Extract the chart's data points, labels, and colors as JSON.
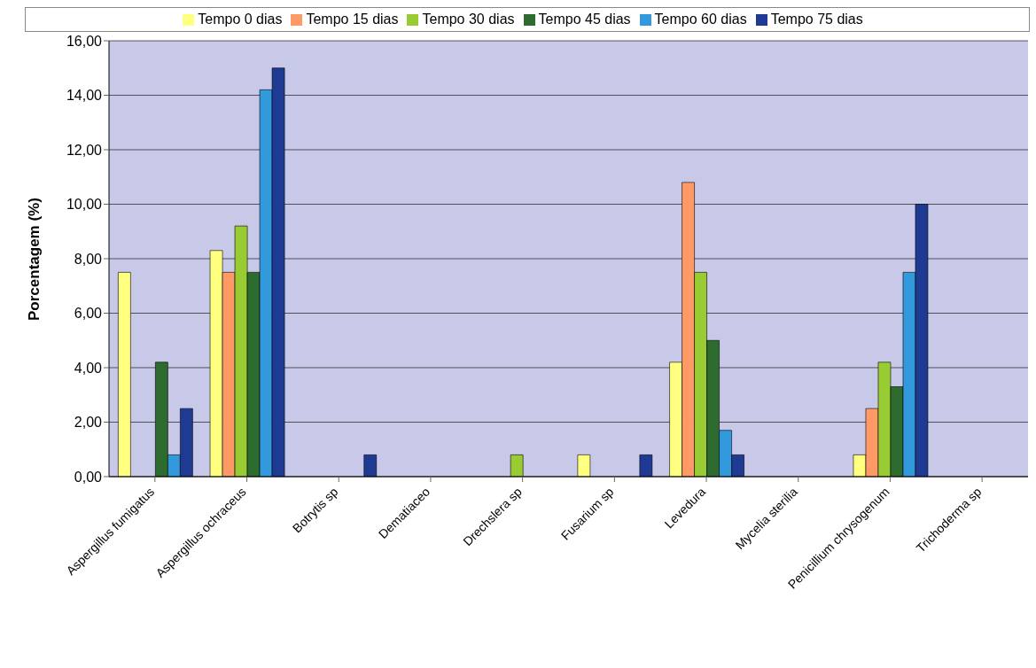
{
  "chart_data": {
    "type": "bar",
    "ylabel": "Porcentagem (%)",
    "categories": [
      "Aspergillus fumigatus",
      "Aspergillus ochraceus",
      "Botrytis sp",
      "Dematiaceo",
      "Drechslera sp",
      "Fusarium sp",
      "Levedura",
      "Mycelia sterilia",
      "Penicillium chrysogenum",
      "Trichoderma sp"
    ],
    "series": [
      {
        "name": "Tempo 0 dias",
        "color": "#ffff80",
        "values": [
          7.5,
          8.3,
          0,
          0,
          0,
          0.8,
          4.2,
          0,
          0.8,
          0
        ]
      },
      {
        "name": "Tempo 15 dias",
        "color": "#ff9966",
        "values": [
          0,
          7.5,
          0,
          0,
          0,
          0,
          10.8,
          0,
          2.5,
          0
        ]
      },
      {
        "name": "Tempo 30 dias",
        "color": "#99cc33",
        "values": [
          0,
          9.2,
          0,
          0,
          0.8,
          0,
          7.5,
          0,
          4.2,
          0
        ]
      },
      {
        "name": "Tempo 45 dias",
        "color": "#2e6b2e",
        "values": [
          4.2,
          7.5,
          0,
          0,
          0,
          0,
          5,
          0,
          3.3,
          0
        ]
      },
      {
        "name": "Tempo 60 dias",
        "color": "#3399dd",
        "values": [
          0.8,
          14.2,
          0,
          0,
          0,
          0,
          1.7,
          0,
          7.5,
          0
        ]
      },
      {
        "name": "Tempo 75 dias",
        "color": "#1f3a93",
        "values": [
          2.5,
          15,
          0.8,
          0,
          0,
          0.8,
          0.8,
          0,
          10,
          0
        ]
      }
    ],
    "ylim": [
      0,
      16
    ],
    "yticks": [
      {
        "value": 0,
        "label": "0,00"
      },
      {
        "value": 2,
        "label": "2,00"
      },
      {
        "value": 4,
        "label": "4,00"
      },
      {
        "value": 6,
        "label": "6,00"
      },
      {
        "value": 8,
        "label": "8,00"
      },
      {
        "value": 10,
        "label": "10,00"
      },
      {
        "value": 12,
        "label": "12,00"
      },
      {
        "value": 14,
        "label": "14,00"
      },
      {
        "value": 16,
        "label": "16,00"
      }
    ],
    "grid": "y",
    "legend": "top"
  }
}
